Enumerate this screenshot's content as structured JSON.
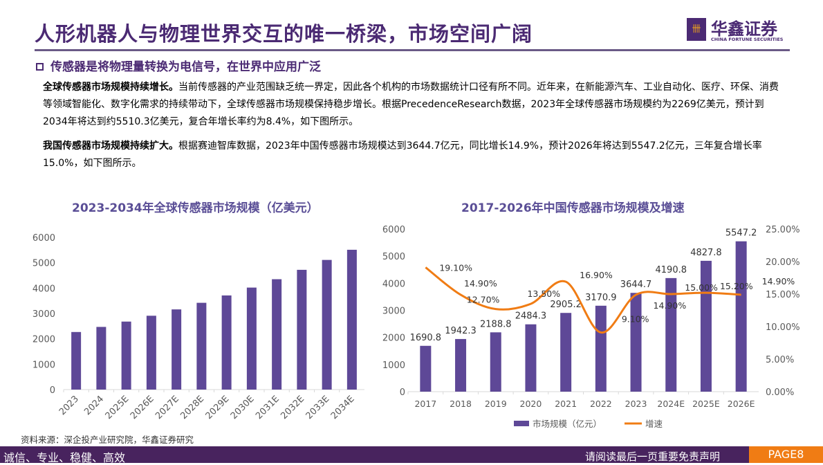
{
  "header": {
    "title": "人形机器人与物理世界交互的唯一桥梁，市场空间广阔",
    "brand_cn": "华鑫证券",
    "brand_en": "CHINA FORTUNE SECURITIES"
  },
  "subtitle": "传感器是将物理量转换为电信号，在世界中应用广泛",
  "paragraphs": [
    {
      "lead": "全球传感器市场规模持续增长。",
      "body": "当前传感器的产业范围缺乏统一界定，因此各个机构的市场数据统计口径有所不同。近年来，在新能源汽车、工业自动化、医疗、环保、消费等领域智能化、数字化需求的持续带动下，全球传感器市场规模保持稳步增长。根据PrecedenceResearch数据，2023年全球传感器市场规模约为2269亿美元，预计到2034年将达到约5510.3亿美元，复合年增长率约为8.4%，如下图所示。"
    },
    {
      "lead": "我国传感器市场规模持续扩大。",
      "body": "根据赛迪智库数据，2023年中国传感器市场规模达到3644.7亿元，同比增长14.9%，预计2026年将达到5547.2亿元，三年复合增长率15.0%，如下图所示。"
    }
  ],
  "chart_data": [
    {
      "type": "bar",
      "title": "2023-2034年全球传感器市场规模（亿美元）",
      "categories": [
        "2023",
        "2024",
        "2025E",
        "2026E",
        "2027E",
        "2028E",
        "2029E",
        "2030E",
        "2031E",
        "2032E",
        "2033E",
        "2034E"
      ],
      "values": [
        2269,
        2470,
        2680,
        2910,
        3160,
        3420,
        3710,
        4020,
        4350,
        4720,
        5110,
        5510.3
      ],
      "ylim": [
        0,
        6000
      ],
      "yticks": [
        0,
        1000,
        2000,
        3000,
        4000,
        5000,
        6000
      ],
      "color": "#5e4897"
    },
    {
      "type": "bar+line",
      "title": "2017-2026年中国传感器市场规模及增速",
      "categories": [
        "2017",
        "2018",
        "2019",
        "2020",
        "2021",
        "2022",
        "2023",
        "2024E",
        "2025E",
        "2026E"
      ],
      "series": [
        {
          "name": "市场规模（亿元）",
          "type": "bar",
          "values": [
            1690.8,
            1942.3,
            2188.8,
            2484.3,
            2905.2,
            3170.9,
            3644.7,
            4190.8,
            4827.8,
            5547.2
          ],
          "labels": [
            "1690.8",
            "1942.3",
            "2188.8",
            "2484.3",
            "2905.2",
            "3170.9",
            "3644.7",
            "4190.8",
            "4827.8",
            "5547.2"
          ],
          "color": "#5e4897"
        },
        {
          "name": "增速",
          "type": "line",
          "axis": "right",
          "values": [
            19.1,
            14.9,
            12.7,
            13.5,
            16.9,
            9.1,
            14.9,
            15.0,
            15.2,
            14.9
          ],
          "labels": [
            "19.10%",
            "14.90%",
            "12.70%",
            "13.50%",
            "16.90%",
            "9.10%",
            "14.90%",
            "15.00%",
            "15.20%",
            "14.90%"
          ],
          "color": "#f07c14"
        }
      ],
      "ylim": [
        0,
        6000
      ],
      "yticks": [
        0,
        1000,
        2000,
        3000,
        4000,
        5000,
        6000
      ],
      "y2lim": [
        0,
        25
      ],
      "y2ticks": [
        "0.00%",
        "5.00%",
        "10.00%",
        "15.00%",
        "20.00%",
        "25.00%"
      ],
      "legend": "bottom"
    }
  ],
  "source": "资料来源：深企投产业研究院，华鑫证券研究",
  "footer": {
    "slogan": "诚信、专业、稳健、高效",
    "notice": "请阅读最后一页重要免责声明",
    "page": "PAGE8"
  }
}
